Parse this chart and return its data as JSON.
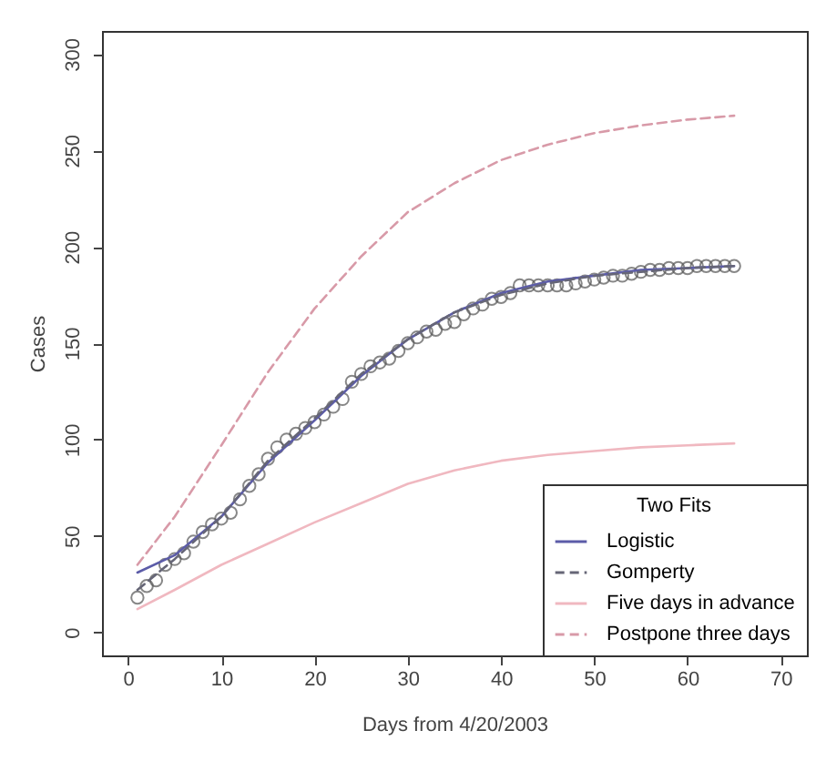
{
  "chart_data": {
    "type": "line",
    "xlabel": "Days from 4/20/2003",
    "ylabel": "Cases",
    "legend_title": "Two Fits",
    "legend": "bottom right",
    "grid": false,
    "xlim": [
      -2.8,
      72.8
    ],
    "ylim": [
      -12,
      312
    ],
    "xticks": [
      0,
      10,
      20,
      30,
      40,
      50,
      60,
      70
    ],
    "yticks": [
      0,
      50,
      100,
      150,
      200,
      250,
      300
    ],
    "series": [
      {
        "type": "scatter",
        "marker": "circle",
        "color": "#555555",
        "x": [
          1,
          2,
          3,
          4,
          5,
          6,
          7,
          8,
          9,
          10,
          11,
          12,
          13,
          14,
          15,
          16,
          17,
          18,
          19,
          20,
          21,
          22,
          23,
          24,
          25,
          26,
          27,
          28,
          29,
          30,
          31,
          32,
          33,
          34,
          35,
          36,
          37,
          38,
          39,
          40,
          41,
          42,
          43,
          44,
          45,
          46,
          47,
          48,
          49,
          50,
          51,
          52,
          53,
          54,
          55,
          56,
          57,
          58,
          59,
          60,
          61,
          62,
          63,
          64,
          65
        ],
        "values": [
          18,
          24,
          27,
          35,
          38,
          41,
          47,
          52,
          56,
          59,
          62,
          69,
          76,
          82,
          90,
          96,
          100,
          103,
          106,
          109,
          113,
          117,
          121,
          130,
          134,
          138,
          140,
          142,
          146,
          150,
          153,
          156,
          157,
          160,
          161,
          165,
          168,
          170,
          173,
          174,
          176,
          180,
          180,
          180,
          180,
          180,
          180,
          181,
          182,
          183,
          184,
          185,
          185,
          186,
          187,
          188,
          188,
          189,
          189,
          189,
          190,
          190,
          190,
          190,
          190
        ]
      },
      {
        "name": "Logistic",
        "line_style": "solid",
        "color": "#5c5ca8",
        "x": [
          1,
          5,
          10,
          15,
          20,
          25,
          30,
          35,
          40,
          45,
          50,
          55,
          60,
          65
        ],
        "values": [
          31,
          40,
          60,
          88,
          110,
          133,
          152,
          166,
          176,
          182,
          185,
          188,
          189,
          190
        ]
      },
      {
        "name": "Gomperty",
        "line_style": "dashed",
        "color": "#666677",
        "x": [
          1,
          5,
          10,
          15,
          20,
          25,
          30,
          35,
          40,
          45,
          50,
          55,
          60,
          65
        ],
        "values": [
          22,
          38,
          60,
          89,
          111,
          134,
          152,
          166,
          175,
          181,
          185,
          187,
          189,
          190
        ]
      },
      {
        "name": "Five days in advance",
        "line_style": "solid",
        "color": "#f0b8c0",
        "x": [
          1,
          5,
          10,
          15,
          20,
          25,
          30,
          35,
          40,
          45,
          50,
          55,
          60,
          65
        ],
        "values": [
          12,
          22,
          35,
          46,
          57,
          67,
          77,
          84,
          89,
          92,
          94,
          96,
          97,
          98
        ]
      },
      {
        "name": "Postpone three days",
        "line_style": "dashed",
        "color": "#d89aa8",
        "x": [
          1,
          5,
          10,
          15,
          20,
          25,
          30,
          35,
          40,
          45,
          50,
          55,
          60,
          65
        ],
        "values": [
          35,
          60,
          97,
          135,
          168,
          195,
          218,
          233,
          245,
          253,
          259,
          263,
          266,
          268
        ]
      }
    ]
  }
}
